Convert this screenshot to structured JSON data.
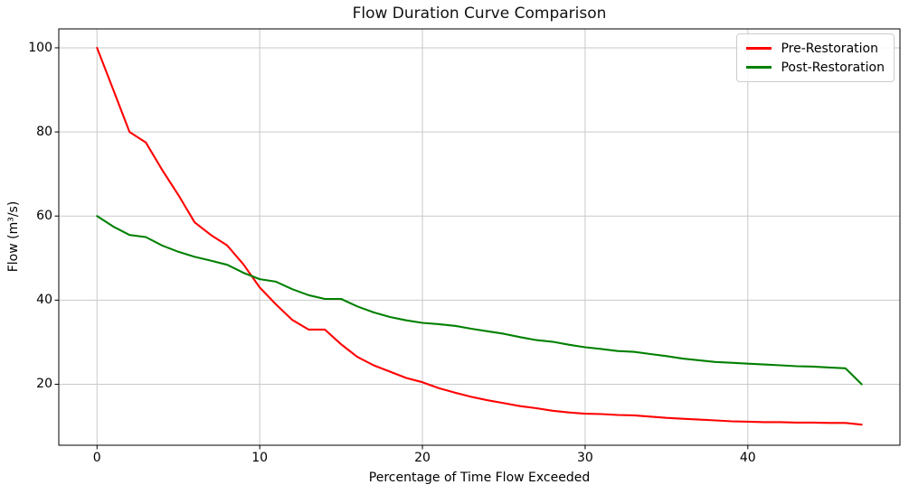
{
  "chart_data": {
    "type": "line",
    "title": "Flow Duration Curve Comparison",
    "xlabel": "Percentage of Time Flow Exceeded",
    "ylabel": "Flow (m³/s)",
    "grid": true,
    "legend_position": "upper right",
    "xlim": [
      -2.35,
      49.35
    ],
    "ylim": [
      5.5,
      104.5
    ],
    "xticks": [
      0,
      10,
      20,
      30,
      40
    ],
    "yticks": [
      20,
      40,
      60,
      80,
      100
    ],
    "x": [
      0,
      1,
      2,
      3,
      4,
      5,
      6,
      7,
      8,
      9,
      10,
      11,
      12,
      13,
      14,
      15,
      16,
      17,
      18,
      19,
      20,
      21,
      22,
      23,
      24,
      25,
      26,
      27,
      28,
      29,
      30,
      31,
      32,
      33,
      34,
      35,
      36,
      37,
      38,
      39,
      40,
      41,
      42,
      43,
      44,
      45,
      46,
      47
    ],
    "series": [
      {
        "name": "Pre-Restoration",
        "color": "#ff0000",
        "values": [
          100,
          90,
          80,
          77.5,
          71,
          65,
          58.5,
          55.5,
          53,
          48.5,
          43,
          39,
          35.3,
          33,
          33,
          29.5,
          26.5,
          24.5,
          23,
          21.5,
          20.5,
          19.1,
          18,
          17,
          16.2,
          15.5,
          14.8,
          14.3,
          13.7,
          13.3,
          13,
          12.9,
          12.7,
          12.6,
          12.3,
          12,
          11.8,
          11.6,
          11.4,
          11.2,
          11.1,
          11,
          11,
          10.9,
          10.9,
          10.8,
          10.8,
          10.4
        ]
      },
      {
        "name": "Post-Restoration",
        "color": "#008000",
        "values": [
          60,
          57.5,
          55.5,
          55,
          53,
          51.5,
          50.3,
          49.4,
          48.4,
          46.5,
          45,
          44.4,
          42.6,
          41.2,
          40.3,
          40.3,
          38.5,
          37.1,
          36,
          35.2,
          34.6,
          34.3,
          33.9,
          33.2,
          32.6,
          32,
          31.2,
          30.5,
          30.1,
          29.4,
          28.8,
          28.4,
          27.9,
          27.7,
          27.2,
          26.7,
          26.1,
          25.7,
          25.3,
          25.1,
          24.9,
          24.7,
          24.5,
          24.3,
          24.2,
          24,
          23.8,
          20
        ]
      }
    ],
    "colors": {
      "grid": "#c9c9c9",
      "spine": "#000000",
      "background": "#ffffff"
    }
  }
}
